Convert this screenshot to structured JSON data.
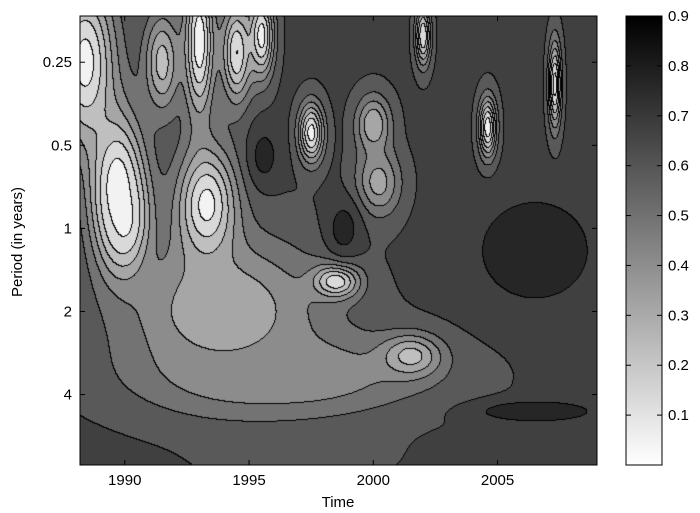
{
  "chart_data": {
    "type": "heatmap",
    "subtype": "wavelet coherence contour plot (grayscale)",
    "title": "",
    "xlabel": "Time",
    "ylabel": "Period (in years)",
    "x_range": [
      1988.2,
      2009.0
    ],
    "y_scale": "log2",
    "y_range": [
      0.17,
      7.2
    ],
    "y_reversed": true,
    "x_ticks": [
      1990,
      1995,
      2000,
      2005
    ],
    "x_tick_labels": [
      "1990",
      "1995",
      "2000",
      "2005"
    ],
    "y_ticks": [
      0.25,
      0.5,
      1,
      2,
      4
    ],
    "y_tick_labels": [
      "0.25",
      "0.5",
      "1",
      "2",
      "4"
    ],
    "colorbar": {
      "range": [
        0,
        0.9
      ],
      "ticks": [
        0.1,
        0.2,
        0.3,
        0.4,
        0.5,
        0.6,
        0.7,
        0.8,
        0.9
      ],
      "tick_labels": [
        "0.1",
        "0.2",
        "0.3",
        "0.4",
        "0.5",
        "0.6",
        "0.7",
        "0.8",
        "0.9"
      ],
      "colormap": "white-to-black",
      "color_low": "#ffffff",
      "color_high": "#000000"
    },
    "contour_levels": [
      0.1,
      0.2,
      0.3,
      0.4,
      0.5,
      0.6,
      0.7,
      0.8,
      0.9
    ],
    "background_value": 0.72,
    "features": [
      {
        "x": 1988.4,
        "y": 0.25,
        "value": 0.05,
        "sx": 1.2,
        "sy": 1.0
      },
      {
        "x": 1989.7,
        "y": 0.7,
        "value": 0.03,
        "sx": 1.1,
        "sy": 0.9
      },
      {
        "x": 1990.0,
        "y": 0.95,
        "value": 0.05,
        "sx": 0.9,
        "sy": 0.6
      },
      {
        "x": 1991.5,
        "y": 0.25,
        "value": 0.25,
        "sx": 0.7,
        "sy": 0.6
      },
      {
        "x": 1993.0,
        "y": 0.21,
        "value": 0.02,
        "sx": 0.6,
        "sy": 0.9
      },
      {
        "x": 1993.3,
        "y": 0.85,
        "value": 0.02,
        "sx": 1.2,
        "sy": 0.75
      },
      {
        "x": 1994.5,
        "y": 0.23,
        "value": 0.1,
        "sx": 0.6,
        "sy": 0.6
      },
      {
        "x": 1995.5,
        "y": 0.2,
        "value": 0.05,
        "sx": 0.5,
        "sy": 0.5
      },
      {
        "x": 1995.6,
        "y": 0.55,
        "value": 0.85,
        "sx": 0.6,
        "sy": 0.35
      },
      {
        "x": 1997.5,
        "y": 0.45,
        "value": 0.05,
        "sx": 0.5,
        "sy": 0.35
      },
      {
        "x": 1994.0,
        "y": 2.0,
        "value": 0.3,
        "sx": 4.0,
        "sy": 0.9
      },
      {
        "x": 1998.5,
        "y": 1.55,
        "value": 0.1,
        "sx": 0.9,
        "sy": 0.2
      },
      {
        "x": 1996.5,
        "y": 3.4,
        "value": 0.4,
        "sx": 5.5,
        "sy": 0.5
      },
      {
        "x": 2001.5,
        "y": 2.9,
        "value": 0.25,
        "sx": 1.2,
        "sy": 0.25
      },
      {
        "x": 2000.2,
        "y": 0.68,
        "value": 0.35,
        "sx": 0.9,
        "sy": 0.4
      },
      {
        "x": 2000.0,
        "y": 0.42,
        "value": 0.3,
        "sx": 0.7,
        "sy": 0.35
      },
      {
        "x": 2004.6,
        "y": 0.43,
        "value": 0.03,
        "sx": 0.35,
        "sy": 0.35
      },
      {
        "x": 2007.3,
        "y": 0.3,
        "value": 0.05,
        "sx": 0.25,
        "sy": 0.5
      },
      {
        "x": 2002.0,
        "y": 0.2,
        "value": 0.1,
        "sx": 0.3,
        "sy": 0.35
      },
      {
        "x": 1998.8,
        "y": 1.0,
        "value": 0.85,
        "sx": 0.7,
        "sy": 0.35
      },
      {
        "x": 2006.5,
        "y": 1.2,
        "value": 0.92,
        "sx": 2.2,
        "sy": 0.6
      },
      {
        "x": 2006.5,
        "y": 4.6,
        "value": 0.92,
        "sx": 2.2,
        "sy": 0.12
      },
      {
        "x": 1997.0,
        "y": 6.5,
        "value": 0.6,
        "sx": 3.0,
        "sy": 0.35
      }
    ]
  }
}
